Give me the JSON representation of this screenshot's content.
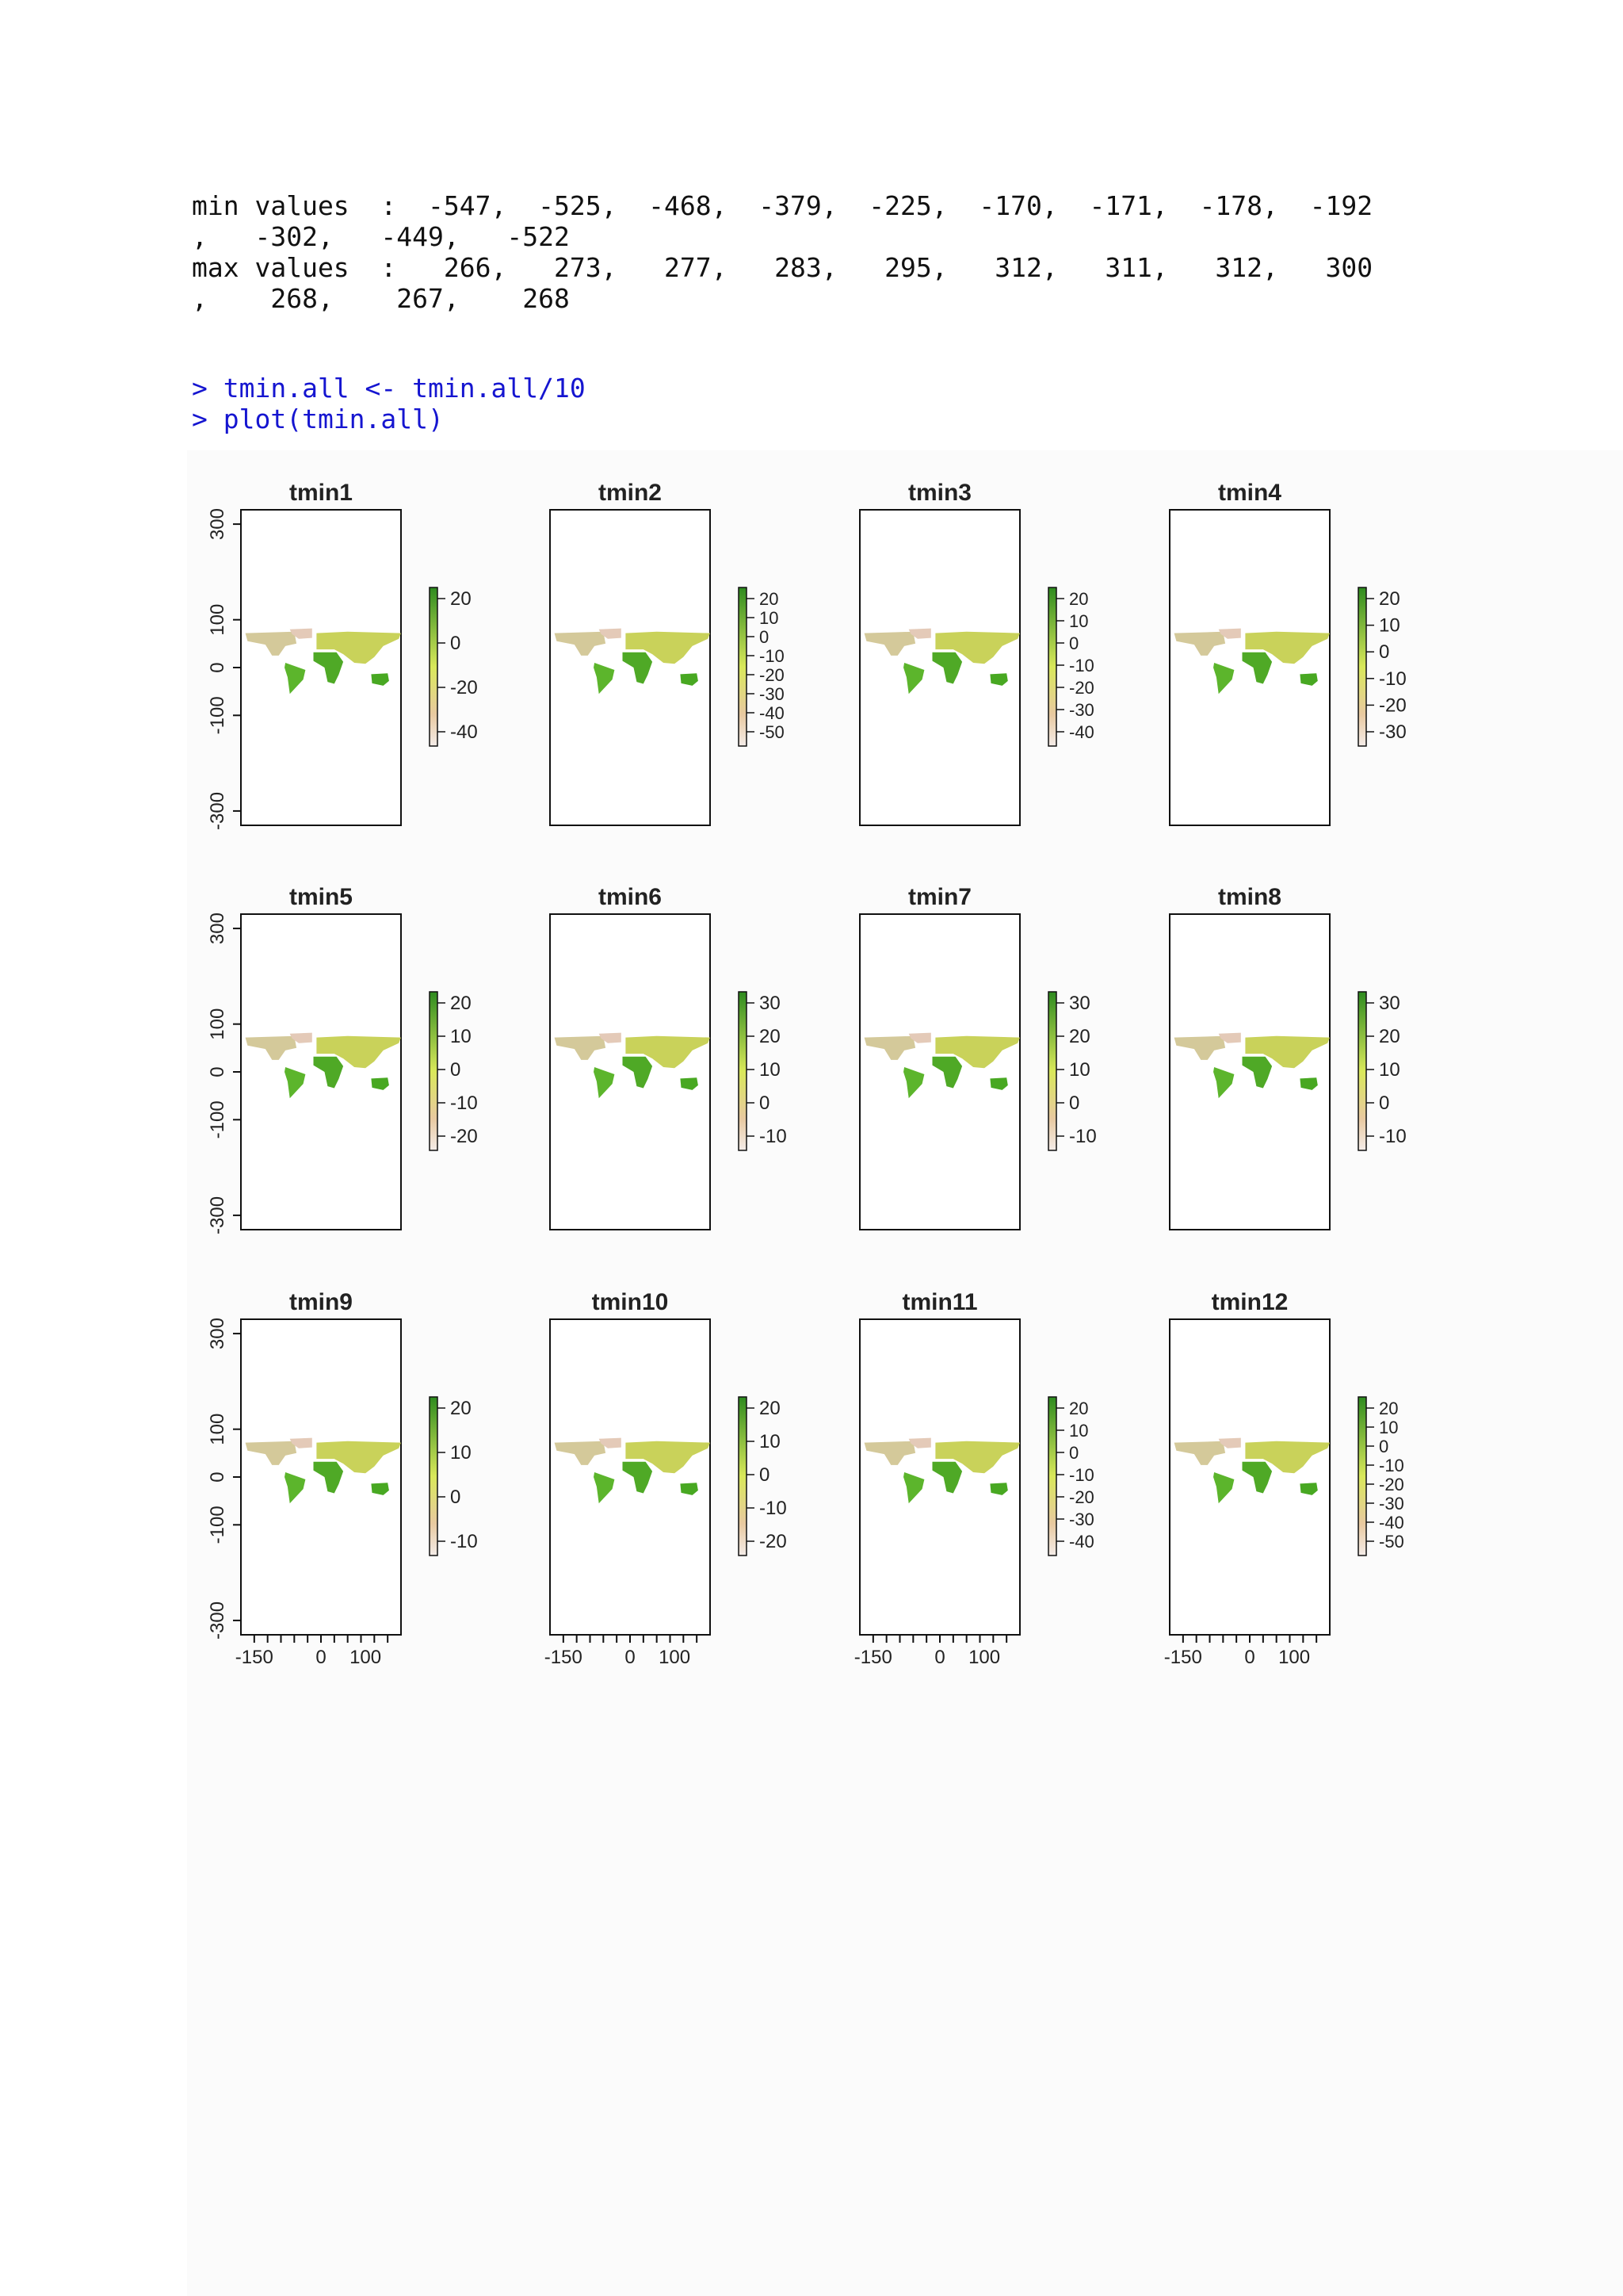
{
  "console": {
    "min_line1": "min values  :  -547,  -525,  -468,  -379,  -225,  -170,  -171,  -178,  -192",
    "min_line2": ",   -302,   -449,   -522",
    "max_line1": "max values  :   266,   273,   277,   283,   295,   312,   311,   312,   300",
    "max_line2": ",    268,    267,    268",
    "cmd1": "> tmin.all <- tmin.all/10",
    "cmd2": "> plot(tmin.all)"
  },
  "colors": {
    "legend_high": "#2e8b1f",
    "legend_mid": "#d9e85a",
    "legend_low": "#f1e6e0",
    "console_command": "#1515d0"
  },
  "chart_data": {
    "type": "heatmap",
    "layout": "3 rows x 4 columns of raster maps",
    "xlabel": "",
    "ylabel": "",
    "xlim": [
      -180,
      180
    ],
    "ylim": [
      -330,
      330
    ],
    "x_ticks": [
      -150,
      0,
      100
    ],
    "y_ticks": [
      300,
      100,
      0,
      -100,
      -300
    ],
    "panels": [
      {
        "title": "tmin1",
        "legend_ticks": [
          20,
          0,
          -20,
          -40
        ]
      },
      {
        "title": "tmin2",
        "legend_ticks": [
          20,
          10,
          0,
          -10,
          -20,
          -30,
          -40,
          -50
        ]
      },
      {
        "title": "tmin3",
        "legend_ticks": [
          20,
          10,
          0,
          -10,
          -20,
          -30,
          -40
        ]
      },
      {
        "title": "tmin4",
        "legend_ticks": [
          20,
          10,
          0,
          -10,
          -20,
          -30
        ]
      },
      {
        "title": "tmin5",
        "legend_ticks": [
          20,
          10,
          0,
          -10,
          -20
        ]
      },
      {
        "title": "tmin6",
        "legend_ticks": [
          30,
          20,
          10,
          0,
          -10
        ]
      },
      {
        "title": "tmin7",
        "legend_ticks": [
          30,
          20,
          10,
          0,
          -10
        ]
      },
      {
        "title": "tmin8",
        "legend_ticks": [
          30,
          20,
          10,
          0,
          -10
        ]
      },
      {
        "title": "tmin9",
        "legend_ticks": [
          20,
          10,
          0,
          -10
        ]
      },
      {
        "title": "tmin10",
        "legend_ticks": [
          20,
          10,
          0,
          -10,
          -20
        ]
      },
      {
        "title": "tmin11",
        "legend_ticks": [
          20,
          10,
          0,
          -10,
          -20,
          -30,
          -40
        ]
      },
      {
        "title": "tmin12",
        "legend_ticks": [
          20,
          10,
          0,
          -10,
          -20,
          -30,
          -40,
          -50
        ]
      }
    ]
  }
}
